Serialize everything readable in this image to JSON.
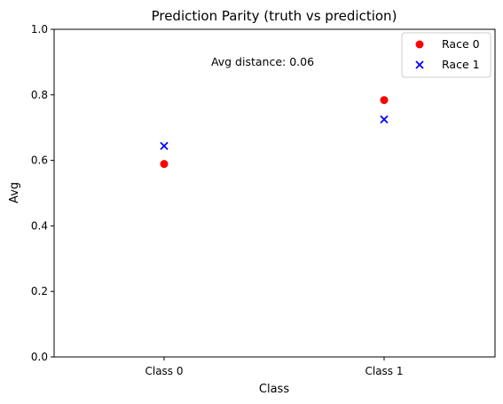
{
  "colors": {
    "race0": "#ff0000",
    "race1": "#0000ff",
    "axis": "#000000",
    "legend_border": "#cccccc"
  },
  "chart_data": {
    "type": "scatter",
    "title": "Prediction Parity (truth vs prediction)",
    "xlabel": "Class",
    "ylabel": "Avg",
    "categories": [
      "Class 0",
      "Class 1"
    ],
    "ylim": [
      0,
      1
    ],
    "yticks": [
      "0.0",
      "0.2",
      "0.4",
      "0.6",
      "0.8",
      "1.0"
    ],
    "grid": false,
    "legend_position": "top-right",
    "annotation": "Avg distance: 0.06",
    "series": [
      {
        "name": "Race 0",
        "marker": "circle",
        "color": "#ff0000",
        "values": [
          0.589,
          0.784
        ]
      },
      {
        "name": "Race 1",
        "marker": "x",
        "color": "#0000ff",
        "values": [
          0.644,
          0.725
        ]
      }
    ]
  }
}
